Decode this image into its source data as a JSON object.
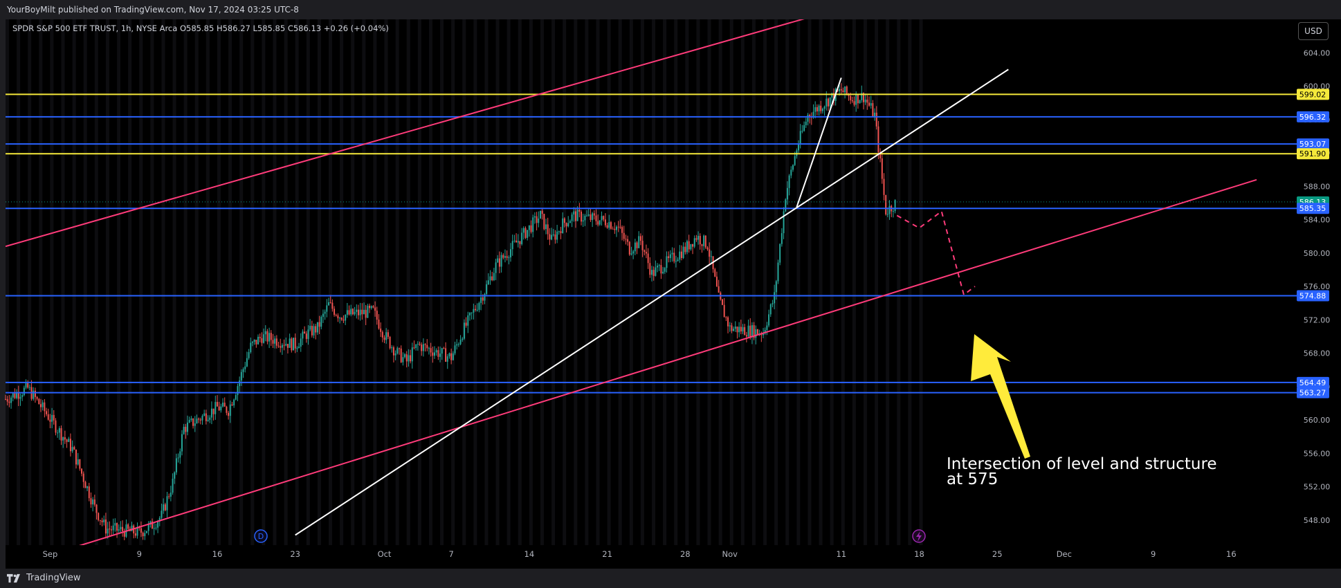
{
  "header": {
    "published": "YourBoyMilt published on TradingView.com, Nov 17, 2024 03:25 UTC-8"
  },
  "legend": {
    "symbol": "SPDR S&P 500 ETF TRUST, 1h, NYSE Arca",
    "o_label": "O",
    "o": "585.85",
    "h_label": "H",
    "h": "586.27",
    "l_label": "L",
    "l": "585.85",
    "c_label": "C",
    "c": "586.13",
    "change": "+0.26 (+0.04%)"
  },
  "currency_button": "USD",
  "footer": {
    "brand": "TradingView"
  },
  "annotation": {
    "line1": "Intersection of level and structure",
    "line2": "at 575"
  },
  "colors": {
    "background": "#000000",
    "up": "#26a69a",
    "down": "#ef5350",
    "blue": "#2962ff",
    "yellow": "#f5e93b",
    "pink": "#ff3b7a",
    "white": "#ffffff",
    "arrow": "#ffeb3b",
    "current": "#089981"
  },
  "chart_data": {
    "type": "candlestick",
    "ylim": [
      545,
      608
    ],
    "y_ticks": [
      548,
      552,
      556,
      560,
      564,
      568,
      572,
      576,
      580,
      584,
      588,
      592,
      596,
      600,
      604
    ],
    "y_tick_labels": [
      "548.00",
      "552.00",
      "556.00",
      "560.00",
      "564.00",
      "568.00",
      "572.00",
      "576.00",
      "580.00",
      "584.00",
      "588.00",
      "592.00",
      "596.00",
      "600.00",
      "604.00"
    ],
    "x_labels": [
      {
        "date": "2024-09-01",
        "label": "Sep"
      },
      {
        "date": "2024-09-09",
        "label": "9"
      },
      {
        "date": "2024-09-16",
        "label": "16"
      },
      {
        "date": "2024-09-23",
        "label": "23"
      },
      {
        "date": "2024-10-01",
        "label": "Oct"
      },
      {
        "date": "2024-10-07",
        "label": "7"
      },
      {
        "date": "2024-10-14",
        "label": "14"
      },
      {
        "date": "2024-10-21",
        "label": "21"
      },
      {
        "date": "2024-10-28",
        "label": "28"
      },
      {
        "date": "2024-11-01",
        "label": "Nov"
      },
      {
        "date": "2024-11-11",
        "label": "11"
      },
      {
        "date": "2024-11-18",
        "label": "18"
      },
      {
        "date": "2024-11-25",
        "label": "25"
      },
      {
        "date": "2024-12-01",
        "label": "Dec"
      },
      {
        "date": "2024-12-09",
        "label": "9"
      },
      {
        "date": "2024-12-16",
        "label": "16"
      }
    ],
    "x_range": [
      "2024-08-28",
      "2024-12-22"
    ],
    "price_path": [
      [
        "2024-08-28",
        562.5
      ],
      [
        "2024-08-30",
        563.8
      ],
      [
        "2024-09-03",
        556.5
      ],
      [
        "2024-09-05",
        549.5
      ],
      [
        "2024-09-06",
        547.0
      ],
      [
        "2024-09-09",
        546.5
      ],
      [
        "2024-09-10",
        547.2
      ],
      [
        "2024-09-11",
        548.5
      ],
      [
        "2024-09-12",
        552.5
      ],
      [
        "2024-09-13",
        559.0
      ],
      [
        "2024-09-16",
        561.5
      ],
      [
        "2024-09-17",
        561.2
      ],
      [
        "2024-09-18",
        564.8
      ],
      [
        "2024-09-19",
        568.8
      ],
      [
        "2024-09-20",
        570.0
      ],
      [
        "2024-09-23",
        569.0
      ],
      [
        "2024-09-24",
        570.3
      ],
      [
        "2024-09-25",
        571.0
      ],
      [
        "2024-09-26",
        573.8
      ],
      [
        "2024-09-27",
        572.5
      ],
      [
        "2024-09-30",
        573.0
      ],
      [
        "2024-10-01",
        570.2
      ],
      [
        "2024-10-02",
        568.2
      ],
      [
        "2024-10-03",
        567.0
      ],
      [
        "2024-10-04",
        569.0
      ],
      [
        "2024-10-07",
        567.5
      ],
      [
        "2024-10-08",
        570.5
      ],
      [
        "2024-10-09",
        573.0
      ],
      [
        "2024-10-10",
        575.5
      ],
      [
        "2024-10-11",
        578.5
      ],
      [
        "2024-10-14",
        583.0
      ],
      [
        "2024-10-15",
        584.5
      ],
      [
        "2024-10-16",
        581.5
      ],
      [
        "2024-10-17",
        583.5
      ],
      [
        "2024-10-18",
        584.5
      ],
      [
        "2024-10-21",
        583.8
      ],
      [
        "2024-10-22",
        583.0
      ],
      [
        "2024-10-23",
        580.5
      ],
      [
        "2024-10-24",
        581.5
      ],
      [
        "2024-10-25",
        577.5
      ],
      [
        "2024-10-28",
        580.5
      ],
      [
        "2024-10-29",
        582.0
      ],
      [
        "2024-10-30",
        581.0
      ],
      [
        "2024-10-31",
        574.5
      ],
      [
        "2024-11-01",
        571.0
      ],
      [
        "2024-11-04",
        570.5
      ],
      [
        "2024-11-05",
        574.8
      ],
      [
        "2024-11-06",
        587.0
      ],
      [
        "2024-11-07",
        592.5
      ],
      [
        "2024-11-08",
        596.5
      ],
      [
        "2024-11-11",
        599.5
      ],
      [
        "2024-11-12",
        598.5
      ],
      [
        "2024-11-13",
        598.8
      ],
      [
        "2024-11-14",
        596.5
      ],
      [
        "2024-11-15",
        585.0
      ],
      [
        "2024-11-16",
        586.13
      ]
    ],
    "horizontal_levels": [
      {
        "value": 599.02,
        "label": "599.02",
        "color": "#f5e93b"
      },
      {
        "value": 596.32,
        "label": "596.32",
        "color": "#2962ff"
      },
      {
        "value": 593.07,
        "label": "593.07",
        "color": "#2962ff"
      },
      {
        "value": 591.9,
        "label": "591.90",
        "color": "#f5e93b"
      },
      {
        "value": 586.13,
        "label": "586.13",
        "color": "#089981"
      },
      {
        "value": 585.35,
        "label": "585.35",
        "color": "#2962ff"
      },
      {
        "value": 574.88,
        "label": "574.88",
        "color": "#2962ff"
      },
      {
        "value": 564.49,
        "label": "564.49",
        "color": "#2962ff"
      },
      {
        "value": 563.27,
        "label": "563.27",
        "color": "#2962ff"
      }
    ],
    "trendlines": [
      {
        "name": "upper-channel",
        "color": "#ff3b7a",
        "p1": [
          "2024-08-28",
          580.8
        ],
        "p2": [
          "2024-11-18",
          612.0
        ]
      },
      {
        "name": "lower-channel",
        "color": "#ff3b7a",
        "p1": [
          "2024-09-05",
          545.5
        ],
        "p2": [
          "2024-12-20",
          589.5
        ]
      },
      {
        "name": "white-trend",
        "color": "#ffffff",
        "p1": [
          "2024-09-23",
          546.2
        ],
        "p2": [
          "2024-11-26",
          602.0
        ]
      },
      {
        "name": "white-spike",
        "color": "#ffffff",
        "p1": [
          "2024-11-07",
          585.5
        ],
        "p2": [
          "2024-11-11",
          601.0
        ]
      }
    ],
    "projection": [
      [
        "2024-11-16",
        584.5
      ],
      [
        "2024-11-18",
        583.0
      ],
      [
        "2024-11-20",
        585.0
      ],
      [
        "2024-11-22",
        575.0
      ],
      [
        "2024-11-23",
        576.0
      ]
    ]
  }
}
